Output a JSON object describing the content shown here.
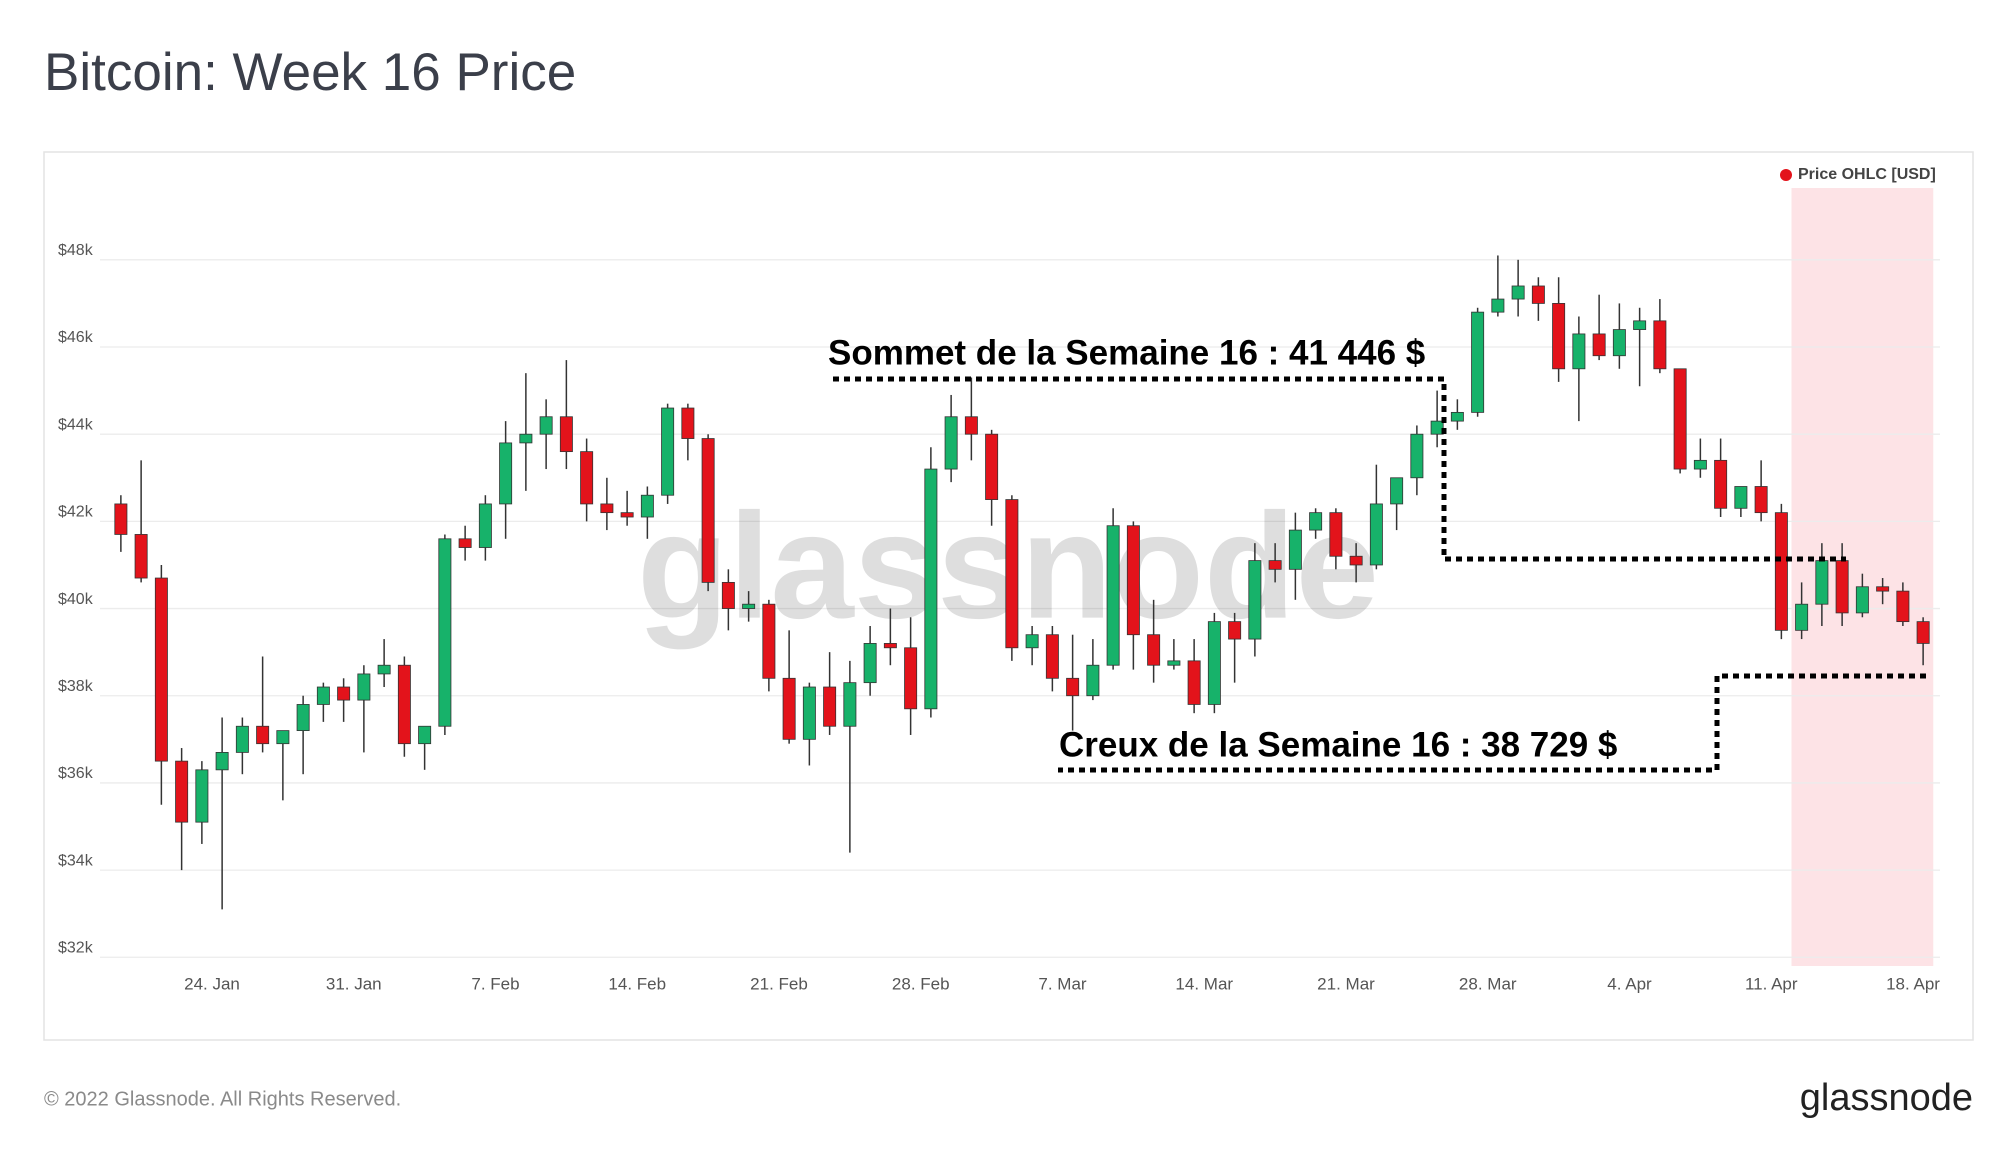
{
  "title": "Bitcoin: Week 16 Price",
  "footer": {
    "copyright": "© 2022 Glassnode. All Rights Reserved.",
    "logo": "glassnode"
  },
  "chart_data": {
    "type": "candlestick",
    "watermark": "glassnode",
    "annotations": [
      {
        "text": "Sommet de la Semaine 16 : 41 446 $"
      },
      {
        "text": "Creux de la Semaine 16 : 38 729 $"
      }
    ],
    "x": [
      "01-19",
      "01-20",
      "01-21",
      "01-22",
      "01-23",
      "01-24",
      "01-25",
      "01-26",
      "01-27",
      "01-28",
      "01-29",
      "01-30",
      "01-31",
      "02-01",
      "02-02",
      "02-03",
      "02-04",
      "02-05",
      "02-06",
      "02-07",
      "02-08",
      "02-09",
      "02-10",
      "02-11",
      "02-12",
      "02-13",
      "02-14",
      "02-15",
      "02-16",
      "02-17",
      "02-18",
      "02-19",
      "02-20",
      "02-21",
      "02-22",
      "02-23",
      "02-24",
      "02-25",
      "02-26",
      "02-27",
      "02-28",
      "03-01",
      "03-02",
      "03-03",
      "03-04",
      "03-05",
      "03-06",
      "03-07",
      "03-08",
      "03-09",
      "03-10",
      "03-11",
      "03-12",
      "03-13",
      "03-14",
      "03-15",
      "03-16",
      "03-17",
      "03-18",
      "03-19",
      "03-20",
      "03-21",
      "03-22",
      "03-23",
      "03-24",
      "03-25",
      "03-26",
      "03-27",
      "03-28",
      "03-29",
      "03-30",
      "03-31",
      "04-01",
      "04-02",
      "04-03",
      "04-04",
      "04-05",
      "04-06",
      "04-07",
      "04-08",
      "04-09",
      "04-10",
      "04-11",
      "04-12",
      "04-13",
      "04-14",
      "04-15",
      "04-16",
      "04-17",
      "04-18"
    ],
    "series": [
      {
        "name": "Price OHLC [USD]",
        "color": "#e3131b",
        "up_color": "#17b26a",
        "open": [
          42400,
          41700,
          40700,
          36500,
          35100,
          36300,
          36700,
          37300,
          36900,
          37200,
          37800,
          38200,
          37900,
          38500,
          38700,
          36900,
          37300,
          41600,
          41400,
          42400,
          43800,
          44000,
          44400,
          43600,
          42400,
          42200,
          42100,
          42600,
          44600,
          43900,
          40600,
          40000,
          40100,
          38400,
          37000,
          38200,
          37300,
          38300,
          39200,
          39100,
          37700,
          43200,
          44400,
          44000,
          42500,
          39100,
          39400,
          38400,
          38000,
          38700,
          41900,
          39400,
          38700,
          38800,
          37800,
          39700,
          39300,
          41100,
          40900,
          41800,
          42200,
          41200,
          41000,
          42400,
          43000,
          44000,
          44300,
          44500,
          46800,
          47100,
          47400,
          47000,
          45500,
          46300,
          45800,
          46400,
          46600,
          45500,
          43200,
          43400,
          42300,
          42800,
          42200,
          39500,
          40100,
          41100,
          39900,
          40500,
          40400,
          39700
        ],
        "high": [
          42600,
          43400,
          41000,
          36800,
          36500,
          37500,
          37500,
          38900,
          37200,
          38000,
          38300,
          38400,
          38700,
          39300,
          38900,
          37300,
          41700,
          41900,
          42600,
          44300,
          45400,
          44800,
          45700,
          43900,
          43000,
          42700,
          42800,
          44700,
          44700,
          44000,
          40900,
          40400,
          40200,
          39500,
          38300,
          39000,
          38800,
          39600,
          40000,
          39800,
          43700,
          44900,
          45300,
          44100,
          42600,
          39600,
          39600,
          39400,
          39300,
          42300,
          42000,
          40200,
          39300,
          39300,
          39900,
          39900,
          41500,
          41500,
          42200,
          42300,
          42300,
          41500,
          43300,
          43000,
          44200,
          45000,
          44800,
          46900,
          48100,
          48000,
          47600,
          47600,
          46700,
          47200,
          47000,
          46900,
          47100,
          45500,
          43900,
          43900,
          42800,
          43400,
          42400,
          40600,
          41500,
          41500,
          40800,
          40700,
          40600,
          39800
        ],
        "low": [
          41300,
          40600,
          35500,
          34000,
          34600,
          33100,
          36200,
          36700,
          35600,
          36200,
          37400,
          37400,
          36700,
          38200,
          36600,
          36300,
          37100,
          41100,
          41100,
          41600,
          42700,
          43200,
          43200,
          42000,
          41800,
          41900,
          41600,
          42400,
          43400,
          40400,
          39500,
          39700,
          38100,
          36900,
          36400,
          37100,
          34400,
          38000,
          38700,
          37100,
          37500,
          42900,
          43400,
          41900,
          38800,
          38700,
          38100,
          37200,
          37900,
          38600,
          38600,
          38300,
          38600,
          37600,
          37600,
          38300,
          38900,
          40600,
          40200,
          41600,
          40900,
          40600,
          40900,
          41800,
          42600,
          43700,
          44100,
          44400,
          46700,
          46700,
          46600,
          45200,
          44300,
          45700,
          45500,
          45100,
          45400,
          43100,
          43000,
          42100,
          42100,
          42000,
          39300,
          39300,
          39600,
          39600,
          39800,
          40100,
          39600,
          38700
        ],
        "close": [
          41700,
          40700,
          36500,
          35100,
          36300,
          36700,
          37300,
          36900,
          37200,
          37800,
          38200,
          37900,
          38500,
          38700,
          36900,
          37300,
          41600,
          41400,
          42400,
          43800,
          44000,
          44400,
          43600,
          42400,
          42200,
          42100,
          42600,
          44600,
          43900,
          40600,
          40000,
          40100,
          38400,
          37000,
          38200,
          37300,
          38300,
          39200,
          39100,
          37700,
          43200,
          44400,
          44000,
          42500,
          39100,
          39400,
          38400,
          38000,
          38700,
          41900,
          39400,
          38700,
          38800,
          37800,
          39700,
          39300,
          41100,
          40900,
          41800,
          42200,
          41200,
          41000,
          42400,
          43000,
          44000,
          44300,
          44500,
          46800,
          47100,
          47400,
          47000,
          45500,
          46300,
          45800,
          46400,
          46600,
          45500,
          43200,
          43400,
          42300,
          42800,
          42200,
          39500,
          40100,
          41100,
          39900,
          40500,
          40400,
          39700,
          39200
        ]
      }
    ],
    "ylim": [
      31800,
      49900
    ],
    "yticks": [
      {
        "value": 32000,
        "label": "$32k"
      },
      {
        "value": 34000,
        "label": "$34k"
      },
      {
        "value": 36000,
        "label": "$36k"
      },
      {
        "value": 38000,
        "label": "$38k"
      },
      {
        "value": 40000,
        "label": "$40k"
      },
      {
        "value": 42000,
        "label": "$42k"
      },
      {
        "value": 44000,
        "label": "$44k"
      },
      {
        "value": 46000,
        "label": "$46k"
      },
      {
        "value": 48000,
        "label": "$48k"
      }
    ],
    "xticks": [
      {
        "value": "01-24",
        "label": "24. Jan"
      },
      {
        "value": "01-31",
        "label": "31. Jan"
      },
      {
        "value": "02-07",
        "label": "7. Feb"
      },
      {
        "value": "02-14",
        "label": "14. Feb"
      },
      {
        "value": "02-21",
        "label": "21. Feb"
      },
      {
        "value": "02-28",
        "label": "28. Feb"
      },
      {
        "value": "03-07",
        "label": "7. Mar"
      },
      {
        "value": "03-14",
        "label": "14. Mar"
      },
      {
        "value": "03-21",
        "label": "21. Mar"
      },
      {
        "value": "03-28",
        "label": "28. Mar"
      },
      {
        "value": "04-04",
        "label": "4. Apr"
      },
      {
        "value": "04-11",
        "label": "11. Apr"
      },
      {
        "value": "04-18",
        "label": "18. Apr"
      }
    ],
    "grid": true,
    "legend": "top-right",
    "highlight": {
      "from": "04-12",
      "to": "04-18",
      "color": "#fde3e6"
    }
  }
}
